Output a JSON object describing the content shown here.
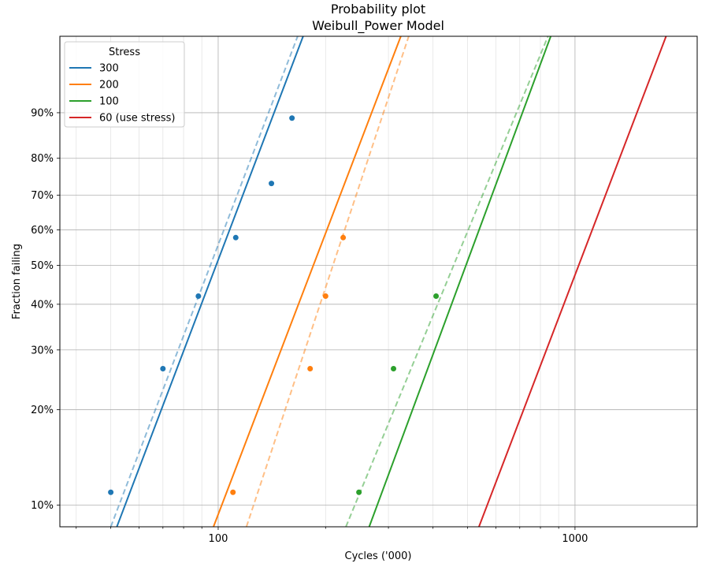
{
  "chart_data": {
    "type": "line",
    "title": "Probability plot",
    "subtitle": "Weibull_Power Model",
    "xlabel": "Cycles ('000)",
    "ylabel": "Fraction failing",
    "x_scale": "log",
    "y_scale": "weibull",
    "xlim": [
      36,
      2200
    ],
    "ylim": [
      0.085,
      0.985
    ],
    "x_major_ticks": [
      100,
      1000
    ],
    "x_tick_labels": [
      "100",
      "1000"
    ],
    "y_ticks": [
      0.1,
      0.2,
      0.3,
      0.4,
      0.5,
      0.6,
      0.7,
      0.8,
      0.9
    ],
    "y_tick_labels": [
      "10%",
      "20%",
      "30%",
      "40%",
      "50%",
      "60%",
      "70%",
      "80%",
      "90%"
    ],
    "grid": true,
    "legend": {
      "title": "Stress",
      "placement": "top-left",
      "entries": [
        "300",
        "200",
        "100",
        "60 (use stress)"
      ]
    },
    "series": [
      {
        "name": "300",
        "color": "#1f77b4",
        "fitted_line": [
          [
            52,
            0.085
          ],
          [
            173,
            0.985
          ]
        ],
        "individual_fit_line": [
          [
            50,
            0.085
          ],
          [
            167,
            0.985
          ]
        ],
        "points": [
          [
            50,
            0.11
          ],
          [
            70,
            0.265
          ],
          [
            88,
            0.42
          ],
          [
            112,
            0.578
          ],
          [
            141,
            0.733
          ],
          [
            161,
            0.89
          ]
        ]
      },
      {
        "name": "200",
        "color": "#ff7f0e",
        "fitted_line": [
          [
            97,
            0.085
          ],
          [
            325,
            0.985
          ]
        ],
        "individual_fit_line": [
          [
            120,
            0.085
          ],
          [
            342,
            0.985
          ]
        ],
        "points": [
          [
            110,
            0.11
          ],
          [
            181,
            0.265
          ],
          [
            200,
            0.42
          ],
          [
            224,
            0.578
          ]
        ]
      },
      {
        "name": "100",
        "color": "#2ca02c",
        "fitted_line": [
          [
            265,
            0.085
          ],
          [
            855,
            0.985
          ]
        ],
        "individual_fit_line": [
          [
            228,
            0.085
          ],
          [
            840,
            0.985
          ]
        ],
        "points": [
          [
            248,
            0.11
          ],
          [
            310,
            0.265
          ],
          [
            408,
            0.42
          ]
        ]
      },
      {
        "name": "60 (use stress)",
        "color": "#d62728",
        "fitted_line": [
          [
            538,
            0.085
          ],
          [
            1800,
            0.985
          ]
        ],
        "points": []
      }
    ]
  }
}
